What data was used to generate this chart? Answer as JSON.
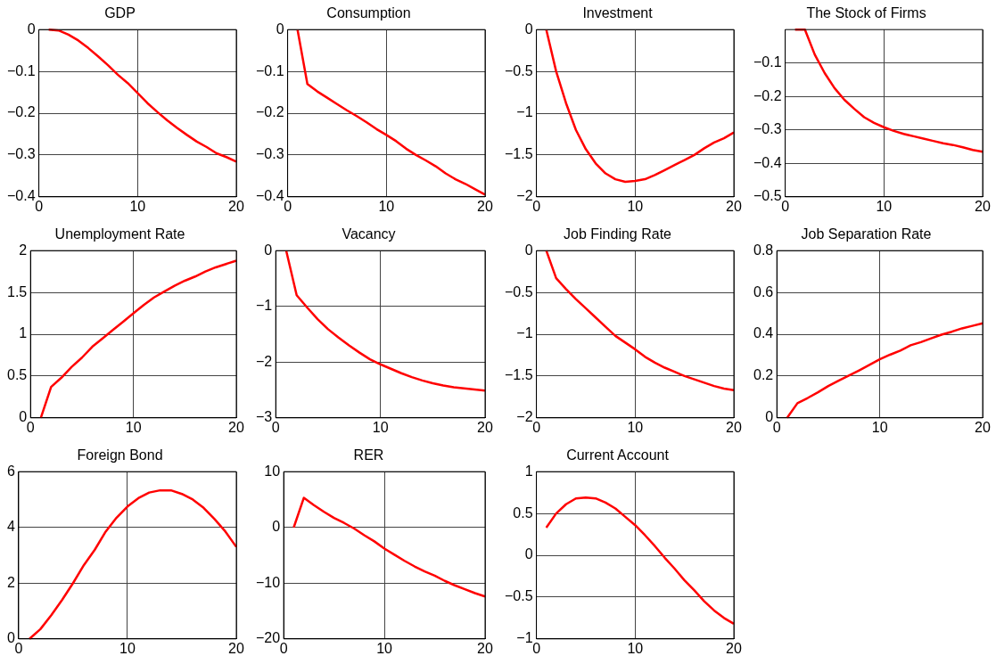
{
  "chart_data": [
    {
      "type": "line",
      "title": "GDP",
      "x": [
        1,
        2,
        3,
        4,
        5,
        6,
        7,
        8,
        9,
        10,
        11,
        12,
        13,
        14,
        15,
        16,
        17,
        18,
        19,
        20
      ],
      "color": "#ff0000",
      "values": [
        0,
        -0.002,
        -0.012,
        -0.026,
        -0.044,
        -0.064,
        -0.085,
        -0.108,
        -0.128,
        -0.152,
        -0.176,
        -0.197,
        -0.217,
        -0.235,
        -0.252,
        -0.268,
        -0.281,
        -0.296,
        -0.305,
        -0.316
      ],
      "xlim": [
        0,
        20
      ],
      "xticks": [
        0,
        10,
        20
      ],
      "ylim": [
        -0.4,
        0
      ],
      "yticks": [
        -0.4,
        -0.3,
        -0.2,
        -0.1,
        0
      ],
      "grid": true
    },
    {
      "type": "line",
      "title": "Consumption",
      "x": [
        1,
        2,
        3,
        4,
        5,
        6,
        7,
        8,
        9,
        10,
        11,
        12,
        13,
        14,
        15,
        16,
        17,
        18,
        19,
        20
      ],
      "color": "#ff0000",
      "values": [
        0,
        -0.13,
        -0.148,
        -0.163,
        -0.178,
        -0.193,
        -0.207,
        -0.222,
        -0.238,
        -0.252,
        -0.267,
        -0.285,
        -0.3,
        -0.313,
        -0.327,
        -0.344,
        -0.358,
        -0.369,
        -0.382,
        -0.395
      ],
      "xlim": [
        0,
        20
      ],
      "xticks": [
        0,
        10,
        20
      ],
      "ylim": [
        -0.4,
        0
      ],
      "yticks": [
        -0.4,
        -0.3,
        -0.2,
        -0.1,
        0
      ],
      "grid": true
    },
    {
      "type": "line",
      "title": "Investment",
      "x": [
        1,
        2,
        3,
        4,
        5,
        6,
        7,
        8,
        9,
        10,
        11,
        12,
        13,
        14,
        15,
        16,
        17,
        18,
        19,
        20
      ],
      "color": "#ff0000",
      "values": [
        0,
        -0.5,
        -0.88,
        -1.2,
        -1.43,
        -1.6,
        -1.72,
        -1.79,
        -1.82,
        -1.81,
        -1.79,
        -1.74,
        -1.68,
        -1.62,
        -1.56,
        -1.5,
        -1.42,
        -1.35,
        -1.3,
        -1.23
      ],
      "xlim": [
        0,
        20
      ],
      "xticks": [
        0,
        10,
        20
      ],
      "ylim": [
        -2,
        0
      ],
      "yticks": [
        -2,
        -1.5,
        -1,
        -0.5,
        0
      ],
      "grid": true
    },
    {
      "type": "line",
      "title": "The Stock of Firms",
      "x": [
        1,
        2,
        3,
        4,
        5,
        6,
        7,
        8,
        9,
        10,
        11,
        12,
        13,
        14,
        15,
        16,
        17,
        18,
        19,
        20
      ],
      "color": "#ff0000",
      "values": [
        0,
        0,
        -0.075,
        -0.13,
        -0.175,
        -0.21,
        -0.237,
        -0.262,
        -0.279,
        -0.292,
        -0.303,
        -0.312,
        -0.319,
        -0.326,
        -0.333,
        -0.34,
        -0.345,
        -0.352,
        -0.36,
        -0.365
      ],
      "xlim": [
        0,
        20
      ],
      "xticks": [
        0,
        10,
        20
      ],
      "ylim": [
        -0.5,
        0
      ],
      "yticks": [
        -0.5,
        -0.4,
        -0.3,
        -0.2,
        -0.1
      ],
      "grid": true
    },
    {
      "type": "line",
      "title": "Unemployment Rate",
      "x": [
        1,
        2,
        3,
        4,
        5,
        6,
        7,
        8,
        9,
        10,
        11,
        12,
        13,
        14,
        15,
        16,
        17,
        18,
        19,
        20
      ],
      "color": "#ff0000",
      "values": [
        0,
        0.37,
        0.48,
        0.61,
        0.72,
        0.85,
        0.95,
        1.05,
        1.15,
        1.25,
        1.35,
        1.44,
        1.51,
        1.58,
        1.64,
        1.69,
        1.75,
        1.8,
        1.84,
        1.88
      ],
      "xlim": [
        0,
        20
      ],
      "xticks": [
        0,
        10,
        20
      ],
      "ylim": [
        0,
        2
      ],
      "yticks": [
        0,
        0.5,
        1,
        1.5,
        2
      ],
      "grid": true
    },
    {
      "type": "line",
      "title": "Vacancy",
      "x": [
        1,
        2,
        3,
        4,
        5,
        6,
        7,
        8,
        9,
        10,
        11,
        12,
        13,
        14,
        15,
        16,
        17,
        18,
        19,
        20
      ],
      "color": "#ff0000",
      "values": [
        0,
        -0.8,
        -1.02,
        -1.23,
        -1.41,
        -1.56,
        -1.7,
        -1.83,
        -1.95,
        -2.04,
        -2.12,
        -2.2,
        -2.27,
        -2.33,
        -2.38,
        -2.42,
        -2.45,
        -2.47,
        -2.49,
        -2.51
      ],
      "xlim": [
        0,
        20
      ],
      "xticks": [
        0,
        10,
        20
      ],
      "ylim": [
        -3,
        0
      ],
      "yticks": [
        -3,
        -2,
        -1,
        0
      ],
      "grid": true
    },
    {
      "type": "line",
      "title": "Job Finding Rate",
      "x": [
        1,
        2,
        3,
        4,
        5,
        6,
        7,
        8,
        9,
        10,
        11,
        12,
        13,
        14,
        15,
        16,
        17,
        18,
        19,
        20
      ],
      "color": "#ff0000",
      "values": [
        0,
        -0.33,
        -0.46,
        -0.58,
        -0.69,
        -0.8,
        -0.91,
        -1.02,
        -1.1,
        -1.18,
        -1.27,
        -1.34,
        -1.4,
        -1.45,
        -1.5,
        -1.54,
        -1.58,
        -1.62,
        -1.65,
        -1.67
      ],
      "xlim": [
        0,
        20
      ],
      "xticks": [
        0,
        10,
        20
      ],
      "ylim": [
        -2,
        0
      ],
      "yticks": [
        -2,
        -1.5,
        -1,
        -0.5,
        0
      ],
      "grid": true
    },
    {
      "type": "line",
      "title": "Job Separation Rate",
      "x": [
        1,
        2,
        3,
        4,
        5,
        6,
        7,
        8,
        9,
        10,
        11,
        12,
        13,
        14,
        15,
        16,
        17,
        18,
        19,
        20
      ],
      "color": "#ff0000",
      "values": [
        0,
        0.07,
        0.095,
        0.122,
        0.152,
        0.178,
        0.202,
        0.227,
        0.253,
        0.28,
        0.302,
        0.322,
        0.347,
        0.362,
        0.38,
        0.398,
        0.412,
        0.428,
        0.44,
        0.452
      ],
      "xlim": [
        0,
        20
      ],
      "xticks": [
        0,
        10,
        20
      ],
      "ylim": [
        0,
        0.8
      ],
      "yticks": [
        0,
        0.2,
        0.4,
        0.6,
        0.8
      ],
      "grid": true
    },
    {
      "type": "line",
      "title": "Foreign Bond",
      "x": [
        1,
        2,
        3,
        4,
        5,
        6,
        7,
        8,
        9,
        10,
        11,
        12,
        13,
        14,
        15,
        16,
        17,
        18,
        19,
        20
      ],
      "color": "#ff0000",
      "values": [
        0,
        0.35,
        0.85,
        1.4,
        2,
        2.65,
        3.2,
        3.85,
        4.35,
        4.75,
        5.05,
        5.25,
        5.33,
        5.33,
        5.2,
        5,
        4.7,
        4.3,
        3.85,
        3.3
      ],
      "xlim": [
        0,
        20
      ],
      "xticks": [
        0,
        10,
        20
      ],
      "ylim": [
        0,
        6
      ],
      "yticks": [
        0,
        2,
        4,
        6
      ],
      "grid": true
    },
    {
      "type": "line",
      "title": "RER",
      "x": [
        1,
        2,
        3,
        4,
        5,
        6,
        7,
        8,
        9,
        10,
        11,
        12,
        13,
        14,
        15,
        16,
        17,
        18,
        19,
        20
      ],
      "color": "#ff0000",
      "values": [
        0,
        5.3,
        4,
        2.8,
        1.7,
        0.8,
        -0.2,
        -1.4,
        -2.5,
        -3.8,
        -4.9,
        -6,
        -7,
        -7.9,
        -8.65,
        -9.6,
        -10.4,
        -11.1,
        -11.8,
        -12.4
      ],
      "xlim": [
        0,
        20
      ],
      "xticks": [
        0,
        10,
        20
      ],
      "ylim": [
        -20,
        10
      ],
      "yticks": [
        -20,
        -10,
        0,
        10
      ],
      "grid": true
    },
    {
      "type": "line",
      "title": "Current Account",
      "x": [
        1,
        2,
        3,
        4,
        5,
        6,
        7,
        8,
        9,
        10,
        11,
        12,
        13,
        14,
        15,
        16,
        17,
        18,
        19,
        20
      ],
      "color": "#ff0000",
      "values": [
        0.33,
        0.5,
        0.61,
        0.68,
        0.69,
        0.68,
        0.63,
        0.56,
        0.46,
        0.36,
        0.24,
        0.11,
        -0.03,
        -0.16,
        -0.3,
        -0.42,
        -0.55,
        -0.66,
        -0.75,
        -0.82
      ],
      "xlim": [
        0,
        20
      ],
      "xticks": [
        0,
        10,
        20
      ],
      "ylim": [
        -1,
        1
      ],
      "yticks": [
        -1,
        -0.5,
        0,
        0.5,
        1
      ],
      "grid": true
    }
  ]
}
